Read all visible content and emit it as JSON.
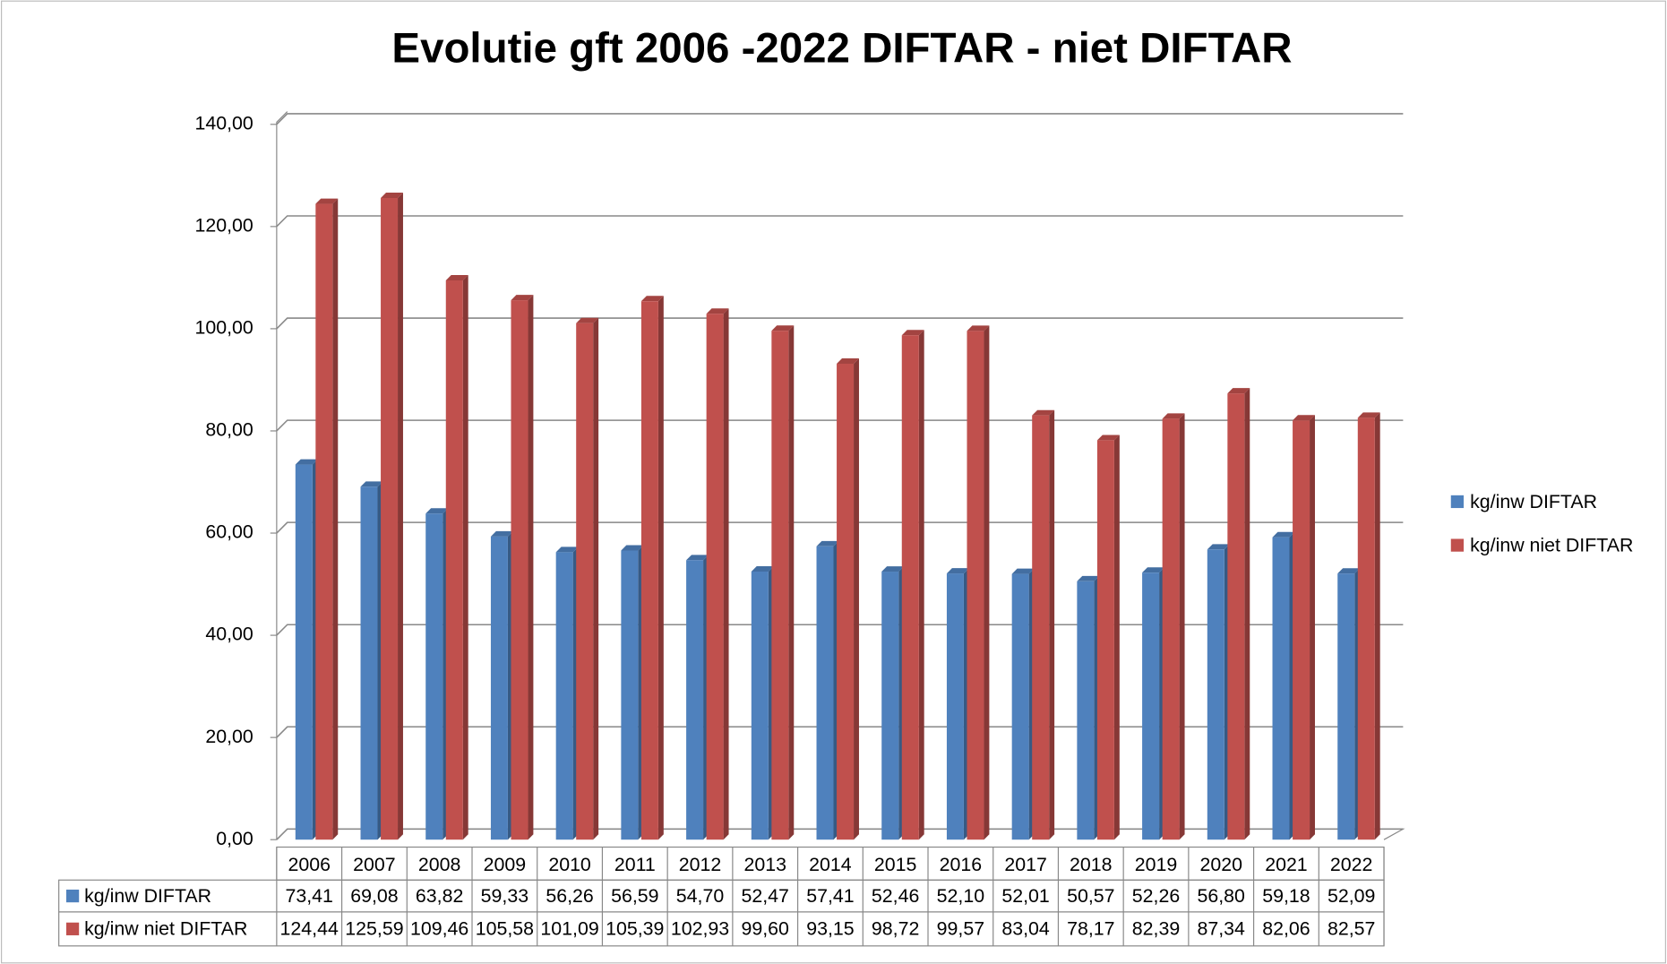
{
  "chart_data": {
    "type": "bar3d",
    "title": "Evolutie gft 2006 -2022 DIFTAR - niet DIFTAR",
    "categories": [
      "2006",
      "2007",
      "2008",
      "2009",
      "2010",
      "2011",
      "2012",
      "2013",
      "2014",
      "2015",
      "2016",
      "2017",
      "2018",
      "2019",
      "2020",
      "2021",
      "2022"
    ],
    "series": [
      {
        "name": "kg/inw DIFTAR",
        "color": "#4f81bd",
        "values": [
          73.41,
          69.08,
          63.82,
          59.33,
          56.26,
          56.59,
          54.7,
          52.47,
          57.41,
          52.46,
          52.1,
          52.01,
          50.57,
          52.26,
          56.8,
          59.18,
          52.09
        ],
        "value_labels": [
          "73,41",
          "69,08",
          "63,82",
          "59,33",
          "56,26",
          "56,59",
          "54,70",
          "52,47",
          "57,41",
          "52,46",
          "52,10",
          "52,01",
          "50,57",
          "52,26",
          "56,80",
          "59,18",
          "52,09"
        ]
      },
      {
        "name": "kg/inw niet DIFTAR",
        "color": "#c0504d",
        "values": [
          124.44,
          125.59,
          109.46,
          105.58,
          101.09,
          105.39,
          102.93,
          99.6,
          93.15,
          98.72,
          99.57,
          83.04,
          78.17,
          82.39,
          87.34,
          82.06,
          82.57
        ],
        "value_labels": [
          "124,44",
          "125,59",
          "109,46",
          "105,58",
          "101,09",
          "105,39",
          "102,93",
          "99,60",
          "93,15",
          "98,72",
          "99,57",
          "83,04",
          "78,17",
          "82,39",
          "87,34",
          "82,06",
          "82,57"
        ]
      }
    ],
    "ylim": [
      0,
      140
    ],
    "yticks": [
      {
        "value": 0,
        "label": "0,00"
      },
      {
        "value": 20,
        "label": "20,00"
      },
      {
        "value": 40,
        "label": "40,00"
      },
      {
        "value": 60,
        "label": "60,00"
      },
      {
        "value": 80,
        "label": "80,00"
      },
      {
        "value": 100,
        "label": "100,00"
      },
      {
        "value": 120,
        "label": "120,00"
      },
      {
        "value": 140,
        "label": "140,00"
      }
    ],
    "grid": true,
    "legend": "right"
  }
}
